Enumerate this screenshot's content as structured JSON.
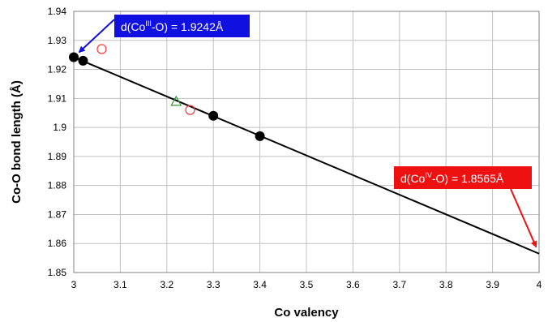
{
  "chart_data": {
    "type": "scatter",
    "xlabel": "Co valency",
    "ylabel": "Co-O bond length (Å)",
    "xlim": [
      3,
      4
    ],
    "ylim": [
      1.85,
      1.94
    ],
    "x_ticks": [
      "3",
      "3.1",
      "3.2",
      "3.3",
      "3.4",
      "3.5",
      "3.6",
      "3.7",
      "3.8",
      "3.9",
      "4"
    ],
    "y_ticks": [
      "1.85",
      "1.86",
      "1.87",
      "1.88",
      "1.89",
      "1.9",
      "1.91",
      "1.92",
      "1.93",
      "1.94"
    ],
    "grid": true,
    "legend": "none",
    "fit_line": {
      "x": [
        3,
        4
      ],
      "y": [
        1.9242,
        1.8565
      ],
      "color": "#000000"
    },
    "series": [
      {
        "marker": "filled-circle",
        "color": "#000000",
        "x": [
          3.0,
          3.02,
          3.3,
          3.4
        ],
        "y": [
          1.9242,
          1.923,
          1.904,
          1.897
        ]
      },
      {
        "marker": "open-circle",
        "color": "#ff3333",
        "x": [
          3.06,
          3.25
        ],
        "y": [
          1.927,
          1.906
        ]
      },
      {
        "marker": "open-triangle",
        "color": "#339933",
        "x": [
          3.22
        ],
        "y": [
          1.909
        ]
      }
    ],
    "annotations": [
      {
        "pre": "d(Co",
        "sup": "III",
        "post": "-O) = 1.9242Å",
        "bg": "#1010e0",
        "x": 3.0,
        "y": 1.9242
      },
      {
        "pre": "d(Co",
        "sup": "IV",
        "post": "-O) = 1.8565Å",
        "bg": "#ee1111",
        "x": 4.0,
        "y": 1.8565
      }
    ]
  }
}
